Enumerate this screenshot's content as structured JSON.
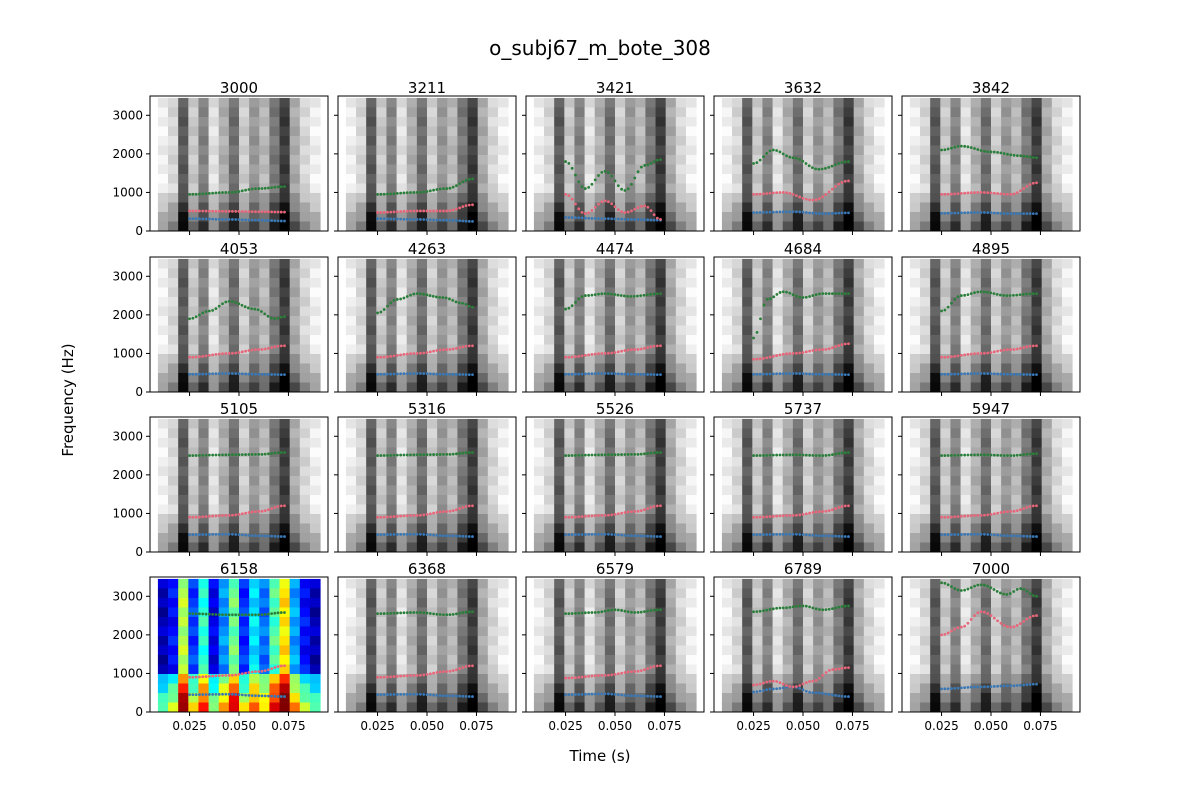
{
  "figure": {
    "title": "o_subj67_m_bote_308",
    "xlabel": "Time (s)",
    "ylabel": "Frequency (Hz)"
  },
  "chart_data": {
    "type": "scatter",
    "layout": "grid 4x5, shared axes",
    "xlim": [
      0.005,
      0.095
    ],
    "ylim": [
      0,
      3500
    ],
    "x_ticks": [
      0.025,
      0.05,
      0.075
    ],
    "x_tick_labels": [
      "0.025",
      "0.050",
      "0.075"
    ],
    "y_ticks": [
      0,
      1000,
      2000,
      3000
    ],
    "y_tick_labels": [
      "0",
      "1000",
      "2000",
      "3000"
    ],
    "background": "spectrogram (grayscale; panel 6158 in jet colormap)",
    "series_colors": {
      "F1": "#3a78b5",
      "F2": "#e8667a",
      "F3": "#2a7f3a"
    },
    "panels": [
      {
        "title": "3000",
        "colormap": "gray",
        "F1": [
          [
            0.025,
            320
          ],
          [
            0.045,
            300
          ],
          [
            0.06,
            280
          ],
          [
            0.073,
            260
          ]
        ],
        "F2": [
          [
            0.025,
            520
          ],
          [
            0.045,
            510
          ],
          [
            0.06,
            500
          ],
          [
            0.073,
            490
          ]
        ],
        "F3": [
          [
            0.025,
            950
          ],
          [
            0.045,
            1000
          ],
          [
            0.06,
            1100
          ],
          [
            0.073,
            1150
          ]
        ]
      },
      {
        "title": "3211",
        "colormap": "gray",
        "F1": [
          [
            0.025,
            320
          ],
          [
            0.045,
            300
          ],
          [
            0.06,
            280
          ],
          [
            0.073,
            250
          ]
        ],
        "F2": [
          [
            0.025,
            480
          ],
          [
            0.045,
            520
          ],
          [
            0.06,
            520
          ],
          [
            0.073,
            680
          ]
        ],
        "F3": [
          [
            0.025,
            950
          ],
          [
            0.045,
            1000
          ],
          [
            0.06,
            1100
          ],
          [
            0.073,
            1350
          ]
        ]
      },
      {
        "title": "3421",
        "colormap": "gray",
        "F1": [
          [
            0.025,
            350
          ],
          [
            0.045,
            320
          ],
          [
            0.06,
            300
          ],
          [
            0.073,
            280
          ]
        ],
        "F2": [
          [
            0.025,
            950
          ],
          [
            0.035,
            450
          ],
          [
            0.045,
            780
          ],
          [
            0.055,
            480
          ],
          [
            0.065,
            650
          ],
          [
            0.073,
            300
          ]
        ],
        "F3": [
          [
            0.025,
            1800
          ],
          [
            0.035,
            1100
          ],
          [
            0.045,
            1550
          ],
          [
            0.055,
            1050
          ],
          [
            0.065,
            1700
          ],
          [
            0.073,
            1850
          ]
        ]
      },
      {
        "title": "3632",
        "colormap": "gray",
        "F1": [
          [
            0.025,
            480
          ],
          [
            0.045,
            500
          ],
          [
            0.06,
            450
          ],
          [
            0.073,
            470
          ]
        ],
        "F2": [
          [
            0.025,
            950
          ],
          [
            0.04,
            1000
          ],
          [
            0.055,
            800
          ],
          [
            0.073,
            1300
          ]
        ],
        "F3": [
          [
            0.025,
            1750
          ],
          [
            0.035,
            2100
          ],
          [
            0.045,
            1900
          ],
          [
            0.058,
            1600
          ],
          [
            0.073,
            1800
          ]
        ]
      },
      {
        "title": "3842",
        "colormap": "gray",
        "F1": [
          [
            0.025,
            460
          ],
          [
            0.045,
            480
          ],
          [
            0.06,
            450
          ],
          [
            0.073,
            450
          ]
        ],
        "F2": [
          [
            0.025,
            950
          ],
          [
            0.045,
            1000
          ],
          [
            0.06,
            950
          ],
          [
            0.073,
            1250
          ]
        ],
        "F3": [
          [
            0.025,
            2100
          ],
          [
            0.035,
            2200
          ],
          [
            0.05,
            2050
          ],
          [
            0.065,
            1950
          ],
          [
            0.073,
            1900
          ]
        ]
      },
      {
        "title": "4053",
        "colormap": "gray",
        "F1": [
          [
            0.025,
            460
          ],
          [
            0.045,
            480
          ],
          [
            0.06,
            460
          ],
          [
            0.073,
            450
          ]
        ],
        "F2": [
          [
            0.025,
            900
          ],
          [
            0.045,
            1000
          ],
          [
            0.06,
            1100
          ],
          [
            0.073,
            1200
          ]
        ],
        "F3": [
          [
            0.025,
            1900
          ],
          [
            0.035,
            2100
          ],
          [
            0.045,
            2350
          ],
          [
            0.058,
            2150
          ],
          [
            0.068,
            1900
          ],
          [
            0.073,
            1950
          ]
        ]
      },
      {
        "title": "4263",
        "colormap": "gray",
        "F1": [
          [
            0.025,
            460
          ],
          [
            0.045,
            480
          ],
          [
            0.06,
            460
          ],
          [
            0.073,
            450
          ]
        ],
        "F2": [
          [
            0.025,
            900
          ],
          [
            0.045,
            1000
          ],
          [
            0.06,
            1100
          ],
          [
            0.073,
            1200
          ]
        ],
        "F3": [
          [
            0.025,
            2050
          ],
          [
            0.035,
            2400
          ],
          [
            0.045,
            2550
          ],
          [
            0.058,
            2450
          ],
          [
            0.068,
            2300
          ],
          [
            0.073,
            2200
          ]
        ]
      },
      {
        "title": "4474",
        "colormap": "gray",
        "F1": [
          [
            0.025,
            460
          ],
          [
            0.045,
            480
          ],
          [
            0.06,
            460
          ],
          [
            0.073,
            450
          ]
        ],
        "F2": [
          [
            0.025,
            900
          ],
          [
            0.045,
            1000
          ],
          [
            0.06,
            1100
          ],
          [
            0.073,
            1200
          ]
        ],
        "F3": [
          [
            0.025,
            2150
          ],
          [
            0.035,
            2500
          ],
          [
            0.045,
            2550
          ],
          [
            0.058,
            2480
          ],
          [
            0.073,
            2550
          ]
        ]
      },
      {
        "title": "4684",
        "colormap": "gray",
        "F1": [
          [
            0.025,
            460
          ],
          [
            0.045,
            480
          ],
          [
            0.06,
            460
          ],
          [
            0.073,
            450
          ]
        ],
        "F2": [
          [
            0.025,
            850
          ],
          [
            0.045,
            1000
          ],
          [
            0.06,
            1100
          ],
          [
            0.073,
            1250
          ]
        ],
        "F3": [
          [
            0.025,
            1400
          ],
          [
            0.032,
            2400
          ],
          [
            0.04,
            2600
          ],
          [
            0.05,
            2450
          ],
          [
            0.06,
            2550
          ],
          [
            0.073,
            2550
          ]
        ]
      },
      {
        "title": "4895",
        "colormap": "gray",
        "F1": [
          [
            0.025,
            460
          ],
          [
            0.045,
            480
          ],
          [
            0.06,
            460
          ],
          [
            0.073,
            450
          ]
        ],
        "F2": [
          [
            0.025,
            900
          ],
          [
            0.045,
            1000
          ],
          [
            0.06,
            1100
          ],
          [
            0.073,
            1200
          ]
        ],
        "F3": [
          [
            0.025,
            2100
          ],
          [
            0.035,
            2500
          ],
          [
            0.045,
            2600
          ],
          [
            0.058,
            2500
          ],
          [
            0.073,
            2550
          ]
        ]
      },
      {
        "title": "5105",
        "colormap": "gray",
        "F1": [
          [
            0.025,
            450
          ],
          [
            0.045,
            460
          ],
          [
            0.06,
            420
          ],
          [
            0.073,
            400
          ]
        ],
        "F2": [
          [
            0.025,
            900
          ],
          [
            0.045,
            950
          ],
          [
            0.06,
            1050
          ],
          [
            0.073,
            1200
          ]
        ],
        "F3": [
          [
            0.025,
            2500
          ],
          [
            0.045,
            2520
          ],
          [
            0.06,
            2530
          ],
          [
            0.073,
            2580
          ]
        ]
      },
      {
        "title": "5316",
        "colormap": "gray",
        "F1": [
          [
            0.025,
            450
          ],
          [
            0.045,
            460
          ],
          [
            0.06,
            420
          ],
          [
            0.073,
            400
          ]
        ],
        "F2": [
          [
            0.025,
            900
          ],
          [
            0.045,
            950
          ],
          [
            0.06,
            1050
          ],
          [
            0.073,
            1200
          ]
        ],
        "F3": [
          [
            0.025,
            2500
          ],
          [
            0.045,
            2520
          ],
          [
            0.06,
            2530
          ],
          [
            0.073,
            2580
          ]
        ]
      },
      {
        "title": "5526",
        "colormap": "gray",
        "F1": [
          [
            0.025,
            450
          ],
          [
            0.045,
            460
          ],
          [
            0.06,
            420
          ],
          [
            0.073,
            400
          ]
        ],
        "F2": [
          [
            0.025,
            900
          ],
          [
            0.045,
            950
          ],
          [
            0.06,
            1050
          ],
          [
            0.073,
            1200
          ]
        ],
        "F3": [
          [
            0.025,
            2500
          ],
          [
            0.045,
            2520
          ],
          [
            0.06,
            2530
          ],
          [
            0.073,
            2580
          ]
        ]
      },
      {
        "title": "5737",
        "colormap": "gray",
        "F1": [
          [
            0.025,
            450
          ],
          [
            0.045,
            460
          ],
          [
            0.06,
            420
          ],
          [
            0.073,
            400
          ]
        ],
        "F2": [
          [
            0.025,
            900
          ],
          [
            0.045,
            950
          ],
          [
            0.06,
            1050
          ],
          [
            0.073,
            1200
          ]
        ],
        "F3": [
          [
            0.025,
            2500
          ],
          [
            0.045,
            2520
          ],
          [
            0.06,
            2500
          ],
          [
            0.073,
            2580
          ]
        ]
      },
      {
        "title": "5947",
        "colormap": "gray",
        "F1": [
          [
            0.025,
            450
          ],
          [
            0.045,
            460
          ],
          [
            0.06,
            420
          ],
          [
            0.073,
            400
          ]
        ],
        "F2": [
          [
            0.025,
            900
          ],
          [
            0.045,
            950
          ],
          [
            0.06,
            1050
          ],
          [
            0.073,
            1200
          ]
        ],
        "F3": [
          [
            0.025,
            2500
          ],
          [
            0.045,
            2520
          ],
          [
            0.06,
            2500
          ],
          [
            0.073,
            2550
          ]
        ]
      },
      {
        "title": "6158",
        "colormap": "jet",
        "F1": [
          [
            0.025,
            450
          ],
          [
            0.045,
            460
          ],
          [
            0.06,
            420
          ],
          [
            0.073,
            400
          ]
        ],
        "F2": [
          [
            0.025,
            900
          ],
          [
            0.045,
            950
          ],
          [
            0.06,
            1050
          ],
          [
            0.073,
            1200
          ]
        ],
        "F3": [
          [
            0.025,
            2550
          ],
          [
            0.045,
            2520
          ],
          [
            0.06,
            2520
          ],
          [
            0.073,
            2580
          ]
        ]
      },
      {
        "title": "6368",
        "colormap": "gray",
        "F1": [
          [
            0.025,
            450
          ],
          [
            0.045,
            460
          ],
          [
            0.06,
            420
          ],
          [
            0.073,
            400
          ]
        ],
        "F2": [
          [
            0.025,
            900
          ],
          [
            0.045,
            950
          ],
          [
            0.06,
            1050
          ],
          [
            0.073,
            1200
          ]
        ],
        "F3": [
          [
            0.025,
            2550
          ],
          [
            0.045,
            2580
          ],
          [
            0.06,
            2520
          ],
          [
            0.073,
            2600
          ]
        ]
      },
      {
        "title": "6579",
        "colormap": "gray",
        "F1": [
          [
            0.025,
            450
          ],
          [
            0.045,
            470
          ],
          [
            0.06,
            420
          ],
          [
            0.073,
            400
          ]
        ],
        "F2": [
          [
            0.025,
            880
          ],
          [
            0.045,
            950
          ],
          [
            0.06,
            1050
          ],
          [
            0.073,
            1200
          ]
        ],
        "F3": [
          [
            0.025,
            2550
          ],
          [
            0.04,
            2580
          ],
          [
            0.05,
            2650
          ],
          [
            0.06,
            2580
          ],
          [
            0.073,
            2650
          ]
        ]
      },
      {
        "title": "6789",
        "colormap": "gray",
        "F1": [
          [
            0.025,
            520
          ],
          [
            0.035,
            600
          ],
          [
            0.045,
            650
          ],
          [
            0.055,
            500
          ],
          [
            0.073,
            400
          ]
        ],
        "F2": [
          [
            0.025,
            700
          ],
          [
            0.035,
            800
          ],
          [
            0.045,
            650
          ],
          [
            0.055,
            800
          ],
          [
            0.065,
            1100
          ],
          [
            0.073,
            1150
          ]
        ],
        "F3": [
          [
            0.025,
            2600
          ],
          [
            0.04,
            2700
          ],
          [
            0.05,
            2750
          ],
          [
            0.06,
            2650
          ],
          [
            0.073,
            2750
          ]
        ]
      },
      {
        "title": "7000",
        "colormap": "gray",
        "F1": [
          [
            0.025,
            600
          ],
          [
            0.045,
            650
          ],
          [
            0.06,
            680
          ],
          [
            0.073,
            720
          ]
        ],
        "F2": [
          [
            0.025,
            2000
          ],
          [
            0.035,
            2200
          ],
          [
            0.045,
            2600
          ],
          [
            0.06,
            2200
          ],
          [
            0.073,
            2500
          ]
        ],
        "F3": [
          [
            0.025,
            3350
          ],
          [
            0.035,
            3150
          ],
          [
            0.045,
            3300
          ],
          [
            0.058,
            3050
          ],
          [
            0.065,
            3200
          ],
          [
            0.073,
            3000
          ]
        ]
      }
    ]
  }
}
